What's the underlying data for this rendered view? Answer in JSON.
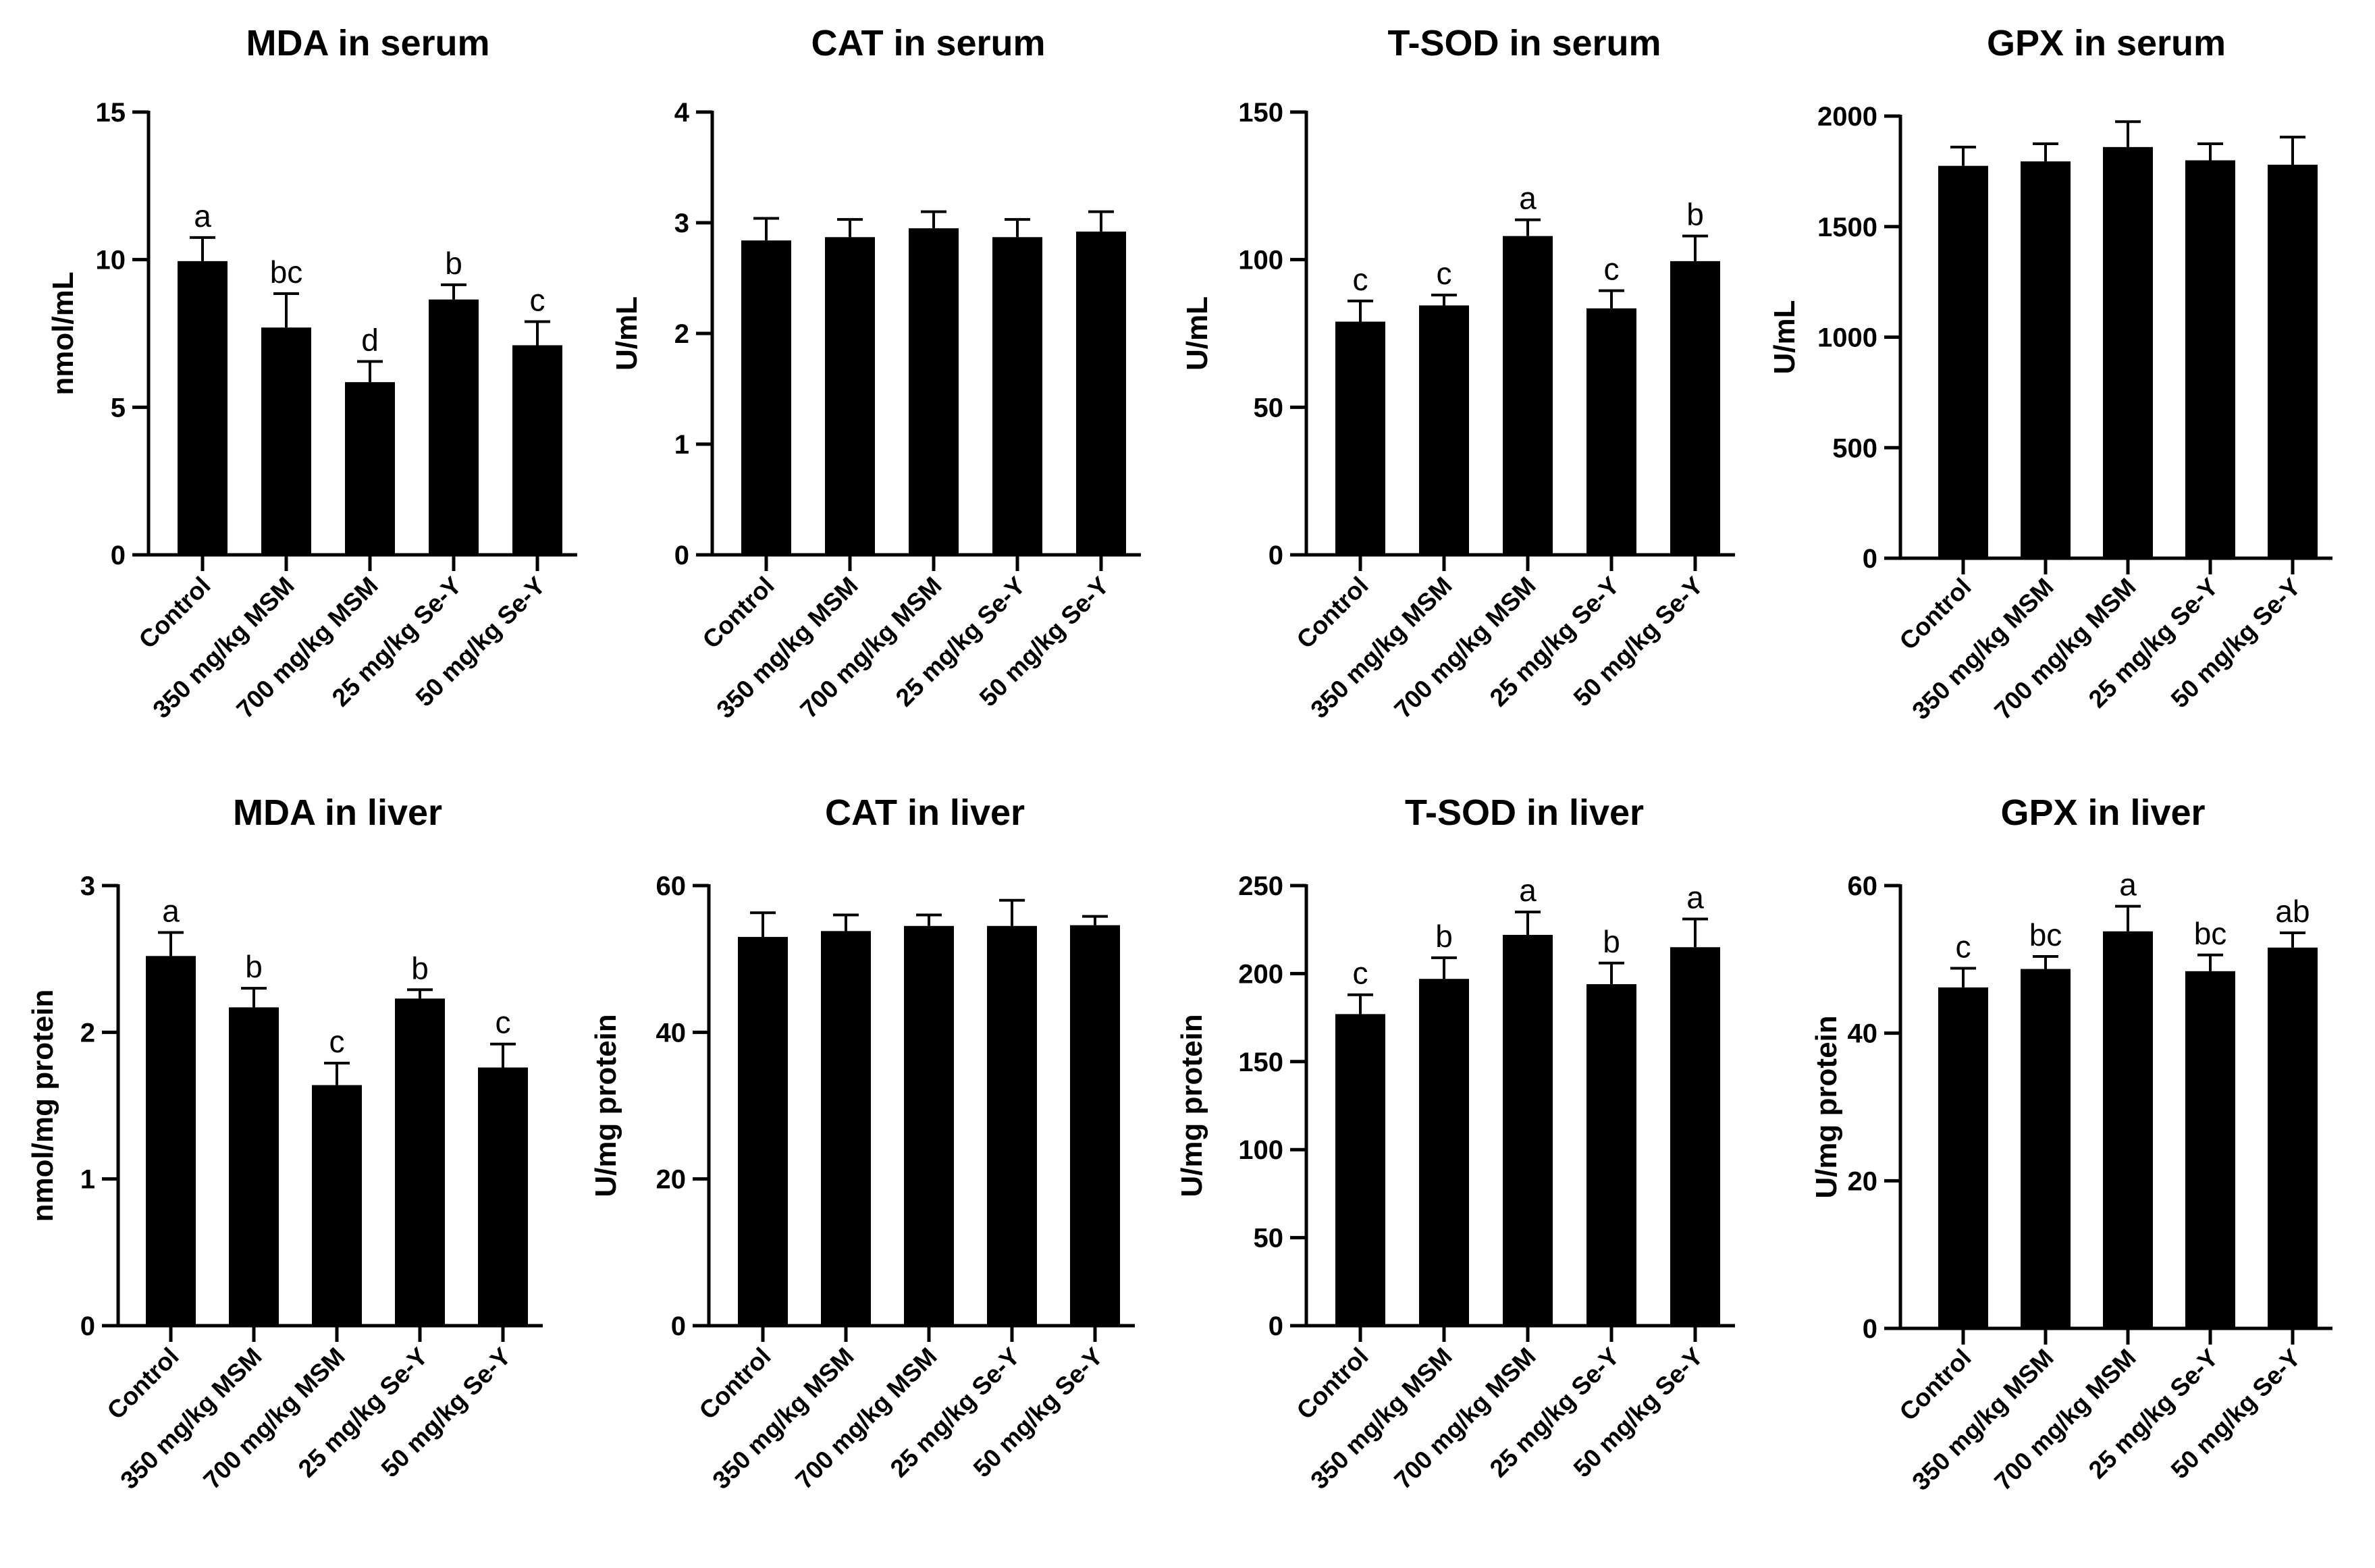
{
  "chart_data": [
    {
      "type": "bar",
      "title": "MDA in serum",
      "ylabel": "nmol/mL",
      "xlabel": "",
      "categories": [
        "Control",
        "350 mg/kg MSM",
        "700 mg/kg MSM",
        "25 mg/kg Se-Y",
        "50 mg/kg Se-Y"
      ],
      "values": [
        9.95,
        7.7,
        5.85,
        8.65,
        7.1
      ],
      "errors": [
        0.8,
        1.15,
        0.7,
        0.5,
        0.8
      ],
      "labels": [
        "a",
        "bc",
        "d",
        "b",
        "c"
      ],
      "ylim": [
        0,
        15
      ],
      "yticks": [
        "0",
        "5",
        "10",
        "15"
      ],
      "grid": false
    },
    {
      "type": "bar",
      "title": "CAT in serum",
      "ylabel": "U/mL",
      "xlabel": "",
      "categories": [
        "Control",
        "350 mg/kg MSM",
        "700 mg/kg MSM",
        "25 mg/kg Se-Y",
        "50 mg/kg Se-Y"
      ],
      "values": [
        2.84,
        2.87,
        2.95,
        2.87,
        2.92
      ],
      "errors": [
        0.2,
        0.16,
        0.15,
        0.16,
        0.18
      ],
      "labels": [
        "",
        "",
        "",
        "",
        ""
      ],
      "ylim": [
        0,
        4
      ],
      "yticks": [
        "0",
        "1",
        "2",
        "3",
        "4"
      ],
      "grid": false
    },
    {
      "type": "bar",
      "title": "T-SOD in serum",
      "ylabel": "U/mL",
      "xlabel": "",
      "categories": [
        "Control",
        "350 mg/kg MSM",
        "700 mg/kg MSM",
        "25 mg/kg Se-Y",
        "50 mg/kg Se-Y"
      ],
      "values": [
        79,
        84.5,
        108,
        83.5,
        99.5
      ],
      "errors": [
        7,
        3.5,
        5.5,
        6,
        8.5
      ],
      "labels": [
        "c",
        "c",
        "a",
        "c",
        "b"
      ],
      "ylim": [
        0,
        150
      ],
      "yticks": [
        "0",
        "50",
        "100",
        "150"
      ],
      "grid": false
    },
    {
      "type": "bar",
      "title": "GPX in serum",
      "ylabel": "U/mL",
      "xlabel": "",
      "categories": [
        "Control",
        "350 mg/kg MSM",
        "700 mg/kg MSM",
        "25 mg/kg Se-Y",
        "50 mg/kg Se-Y"
      ],
      "values": [
        1775,
        1795,
        1860,
        1800,
        1780
      ],
      "errors": [
        85,
        80,
        115,
        75,
        125
      ],
      "labels": [
        "",
        "",
        "",
        "",
        ""
      ],
      "ylim": [
        0,
        2000
      ],
      "yticks": [
        "0",
        "500",
        "1000",
        "1500",
        "2000"
      ],
      "grid": false
    },
    {
      "type": "bar",
      "title": "MDA in liver",
      "ylabel": "nmol/mg protein",
      "xlabel": "",
      "categories": [
        "Control",
        "350 mg/kg MSM",
        "700 mg/kg MSM",
        "25 mg/kg Se-Y",
        "50 mg/kg Se-Y"
      ],
      "values": [
        2.52,
        2.17,
        1.64,
        2.23,
        1.76
      ],
      "errors": [
        0.16,
        0.13,
        0.15,
        0.06,
        0.16
      ],
      "labels": [
        "a",
        "b",
        "c",
        "b",
        "c"
      ],
      "ylim": [
        0,
        3
      ],
      "yticks": [
        "0",
        "1",
        "2",
        "3"
      ],
      "grid": false
    },
    {
      "type": "bar",
      "title": "CAT in liver",
      "ylabel": "U/mg protein",
      "xlabel": "",
      "categories": [
        "Control",
        "350 mg/kg MSM",
        "700 mg/kg MSM",
        "25 mg/kg Se-Y",
        "50 mg/kg Se-Y"
      ],
      "values": [
        53,
        53.8,
        54.5,
        54.5,
        54.6
      ],
      "errors": [
        3.3,
        2.2,
        1.5,
        3.5,
        1.2
      ],
      "labels": [
        "",
        "",
        "",
        "",
        ""
      ],
      "ylim": [
        0,
        60
      ],
      "yticks": [
        "0",
        "20",
        "40",
        "60"
      ],
      "grid": false
    },
    {
      "type": "bar",
      "title": "T-SOD in liver",
      "ylabel": "U/mg protein",
      "xlabel": "",
      "categories": [
        "Control",
        "350 mg/kg MSM",
        "700 mg/kg MSM",
        "25 mg/kg Se-Y",
        "50 mg/kg Se-Y"
      ],
      "values": [
        177,
        197,
        222,
        194,
        215
      ],
      "errors": [
        11,
        12,
        13,
        12,
        16
      ],
      "labels": [
        "c",
        "b",
        "a",
        "b",
        "a"
      ],
      "ylim": [
        0,
        250
      ],
      "yticks": [
        "0",
        "50",
        "100",
        "150",
        "200",
        "250"
      ],
      "grid": false
    },
    {
      "type": "bar",
      "title": "GPX in liver",
      "ylabel": "U/mg protein",
      "xlabel": "",
      "categories": [
        "Control",
        "350 mg/kg MSM",
        "700 mg/kg MSM",
        "25 mg/kg Se-Y",
        "50 mg/kg Se-Y"
      ],
      "values": [
        46.2,
        48.7,
        53.8,
        48.4,
        51.6
      ],
      "errors": [
        2.6,
        1.7,
        3.4,
        2.2,
        2.0
      ],
      "labels": [
        "c",
        "bc",
        "a",
        "bc",
        "ab"
      ],
      "ylim": [
        0,
        60
      ],
      "yticks": [
        "0",
        "20",
        "40",
        "60"
      ],
      "grid": false
    }
  ]
}
